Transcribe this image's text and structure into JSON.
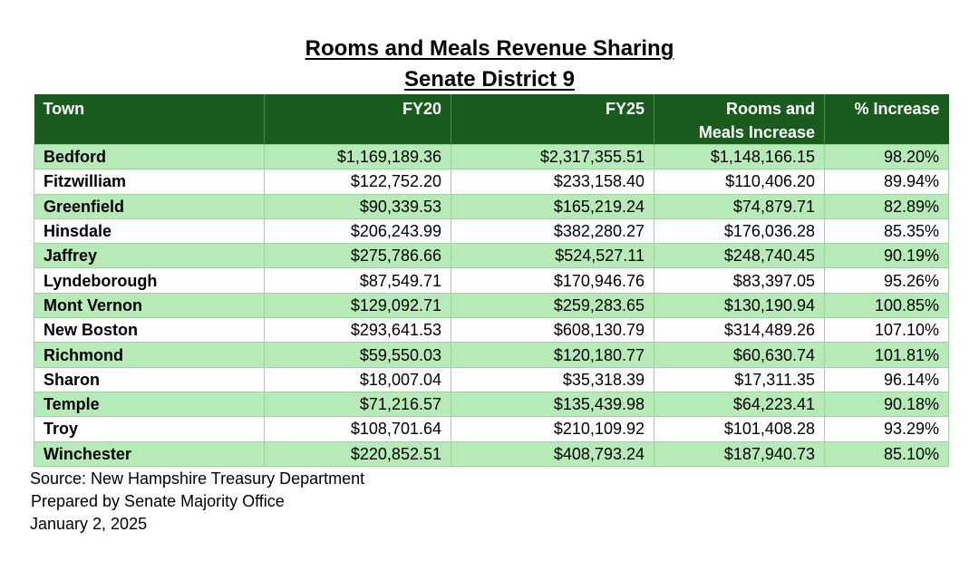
{
  "title": {
    "line1": "Rooms and Meals Revenue Sharing",
    "line2": "Senate District 9"
  },
  "table": {
    "headers": {
      "town": "Town",
      "fy20": "FY20",
      "fy25": "FY25",
      "increase_line1": "Rooms and",
      "increase_line2": "Meals Increase",
      "pct": "% Increase"
    },
    "rows": [
      {
        "town": "Bedford",
        "fy20": "$1,169,189.36",
        "fy25": "$2,317,355.51",
        "increase": "$1,148,166.15",
        "pct": "98.20%"
      },
      {
        "town": "Fitzwilliam",
        "fy20": "$122,752.20",
        "fy25": "$233,158.40",
        "increase": "$110,406.20",
        "pct": "89.94%"
      },
      {
        "town": "Greenfield",
        "fy20": "$90,339.53",
        "fy25": "$165,219.24",
        "increase": "$74,879.71",
        "pct": "82.89%"
      },
      {
        "town": "Hinsdale",
        "fy20": "$206,243.99",
        "fy25": "$382,280.27",
        "increase": "$176,036.28",
        "pct": "85.35%"
      },
      {
        "town": "Jaffrey",
        "fy20": "$275,786.66",
        "fy25": "$524,527.11",
        "increase": "$248,740.45",
        "pct": "90.19%"
      },
      {
        "town": "Lyndeborough",
        "fy20": "$87,549.71",
        "fy25": "$170,946.76",
        "increase": "$83,397.05",
        "pct": "95.26%"
      },
      {
        "town": "Mont Vernon",
        "fy20": "$129,092.71",
        "fy25": "$259,283.65",
        "increase": "$130,190.94",
        "pct": "100.85%"
      },
      {
        "town": "New Boston",
        "fy20": "$293,641.53",
        "fy25": "$608,130.79",
        "increase": "$314,489.26",
        "pct": "107.10%"
      },
      {
        "town": "Richmond",
        "fy20": "$59,550.03",
        "fy25": "$120,180.77",
        "increase": "$60,630.74",
        "pct": "101.81%"
      },
      {
        "town": "Sharon",
        "fy20": "$18,007.04",
        "fy25": "$35,318.39",
        "increase": "$17,311.35",
        "pct": "96.14%"
      },
      {
        "town": "Temple",
        "fy20": "$71,216.57",
        "fy25": "$135,439.98",
        "increase": "$64,223.41",
        "pct": "90.18%"
      },
      {
        "town": "Troy",
        "fy20": "$108,701.64",
        "fy25": "$210,109.92",
        "increase": "$101,408.28",
        "pct": "93.29%"
      },
      {
        "town": "Winchester",
        "fy20": "$220,852.51",
        "fy25": "$408,793.24",
        "increase": "$187,940.73",
        "pct": "85.10%"
      }
    ]
  },
  "footer": {
    "source": "Source: New Hampshire Treasury Department",
    "prepared_by": "Prepared by Senate Majority Office",
    "date": "January 2, 2025"
  },
  "colors": {
    "header_bg": "#1a5c1e",
    "header_text": "#ffffff",
    "row_shaded": "#b6ebb8",
    "row_plain": "#ffffff",
    "grid_line": "#9ed39e"
  }
}
